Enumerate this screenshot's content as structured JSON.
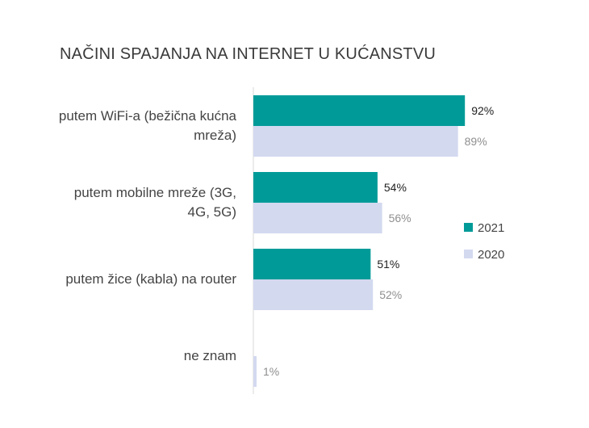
{
  "chart_data": {
    "type": "bar",
    "orientation": "horizontal",
    "title": "NAČINI SPAJANJA NA INTERNET U KUĆANSTVU",
    "categories": [
      [
        "putem WiFi-a (bežična kućna",
        "mreža)"
      ],
      [
        "putem mobilne mreže (3G,",
        "4G, 5G)"
      ],
      [
        "putem žice (kabla) na router"
      ],
      [
        "ne znam"
      ]
    ],
    "series": [
      {
        "name": "2021",
        "color": "#009b98",
        "label_color": "#222222",
        "values": [
          92,
          54,
          51,
          null
        ],
        "labels": [
          "92%",
          "54%",
          "51%",
          ""
        ]
      },
      {
        "name": "2020",
        "color": "#d3d9ef",
        "label_color": "#8f8f8f",
        "values": [
          89,
          56,
          52,
          1
        ],
        "labels": [
          "89%",
          "56%",
          "52%",
          "1%"
        ]
      }
    ],
    "xlim": [
      0,
      100
    ],
    "grid": false,
    "legend": "right"
  }
}
